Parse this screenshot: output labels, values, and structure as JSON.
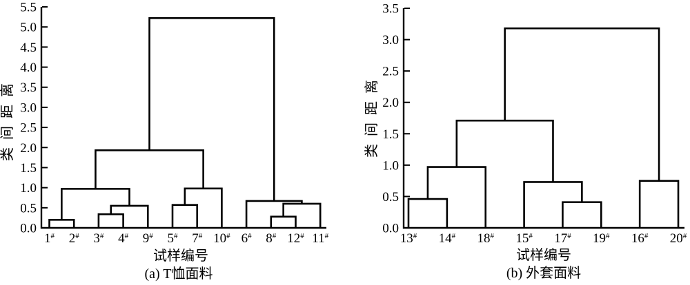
{
  "page": {
    "background": "#ffffff"
  },
  "chart_data": [
    {
      "type": "dendrogram",
      "caption": "(a) T恤面料",
      "xlabel": "试样编号",
      "ylabel": "类间距离",
      "ylim": [
        0,
        5.5
      ],
      "ytick_step": 0.5,
      "ytick_labels": [
        "0.0",
        "0.5",
        "1.0",
        "1.5",
        "2.0",
        "2.5",
        "3.0",
        "3.5",
        "4.0",
        "4.5",
        "5.0",
        "5.5"
      ],
      "leaf_suffix": "#",
      "leaves": [
        "1",
        "2",
        "3",
        "4",
        "9",
        "5",
        "7",
        "10",
        "6",
        "8",
        "12",
        "11"
      ],
      "merges": [
        {
          "children": [
            "L0",
            "L1"
          ],
          "height": 0.2
        },
        {
          "children": [
            "L2",
            "L3"
          ],
          "height": 0.34
        },
        {
          "children": [
            "M1",
            "L4"
          ],
          "height": 0.55
        },
        {
          "children": [
            "M0",
            "M2"
          ],
          "height": 0.97
        },
        {
          "children": [
            "L5",
            "L6"
          ],
          "height": 0.57
        },
        {
          "children": [
            "M4",
            "L7"
          ],
          "height": 0.98
        },
        {
          "children": [
            "M3",
            "M5"
          ],
          "height": 1.93
        },
        {
          "children": [
            "L9",
            "L10"
          ],
          "height": 0.28
        },
        {
          "children": [
            "M7",
            "L11"
          ],
          "height": 0.6
        },
        {
          "children": [
            "L8",
            "M8"
          ],
          "height": 0.67
        },
        {
          "children": [
            "M6",
            "M9"
          ],
          "height": 5.22
        }
      ],
      "grid": false,
      "legend": null,
      "line_color": "#000000"
    },
    {
      "type": "dendrogram",
      "caption": "(b) 外套面料",
      "xlabel": "试样编号",
      "ylabel": "类间距离",
      "ylim": [
        0,
        3.5
      ],
      "ytick_step": 0.5,
      "ytick_labels": [
        "0.0",
        "0.5",
        "1.0",
        "1.5",
        "2.0",
        "2.5",
        "3.0",
        "3.5"
      ],
      "leaf_suffix": "#",
      "leaves": [
        "13",
        "14",
        "18",
        "15",
        "17",
        "19",
        "16",
        "20"
      ],
      "merges": [
        {
          "children": [
            "L0",
            "L1"
          ],
          "height": 0.46
        },
        {
          "children": [
            "M0",
            "L2"
          ],
          "height": 0.97
        },
        {
          "children": [
            "L4",
            "L5"
          ],
          "height": 0.41
        },
        {
          "children": [
            "L3",
            "M2"
          ],
          "height": 0.73
        },
        {
          "children": [
            "M1",
            "M3"
          ],
          "height": 1.71
        },
        {
          "children": [
            "L6",
            "L7"
          ],
          "height": 0.75
        },
        {
          "children": [
            "M4",
            "M5"
          ],
          "height": 3.18
        }
      ],
      "grid": false,
      "legend": null,
      "line_color": "#000000"
    }
  ]
}
